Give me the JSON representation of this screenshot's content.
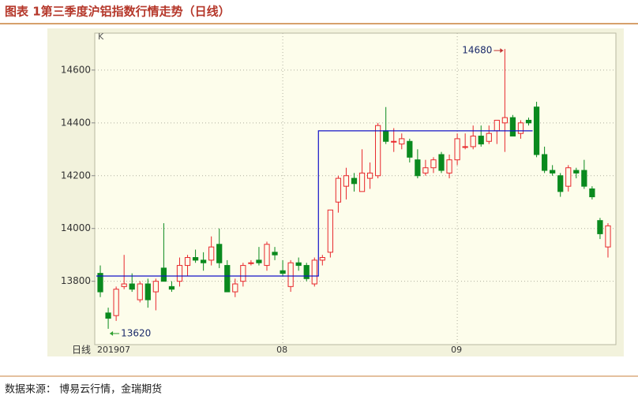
{
  "chart_data": {
    "type": "candlestick",
    "title": "图表 1第三季度沪铝指数行情走势（日线）",
    "y_unit_label": "K",
    "period_label": "日线",
    "source": "数据来源：  博易云行情，金瑞期货",
    "categories": [
      "201907",
      null,
      null,
      null,
      null,
      null,
      null,
      null,
      null,
      null,
      null,
      null,
      null,
      null,
      null,
      null,
      null,
      null,
      null,
      null,
      null,
      null,
      null,
      "08",
      null,
      null,
      null,
      null,
      null,
      null,
      null,
      null,
      null,
      null,
      null,
      null,
      null,
      null,
      null,
      null,
      null,
      null,
      null,
      null,
      null,
      "09",
      null,
      null,
      null,
      null,
      null,
      null,
      null,
      null,
      null,
      null,
      null,
      null,
      null,
      null,
      null,
      null,
      null,
      null,
      null
    ],
    "open": [
      13830,
      13680,
      13670,
      13780,
      13790,
      13730,
      13790,
      13760,
      13850,
      13780,
      13800,
      13860,
      13890,
      13880,
      13880,
      13940,
      13860,
      13760,
      13800,
      13870,
      13880,
      13860,
      13910,
      13840,
      13780,
      13870,
      13860,
      13790,
      13880,
      13910,
      14100,
      14160,
      14190,
      14140,
      14190,
      14200,
      14370,
      14330,
      14320,
      14330,
      14260,
      14210,
      14230,
      14280,
      14210,
      14260,
      14310,
      14310,
      14350,
      14330,
      14370,
      14400,
      14420,
      14360,
      14410,
      14460,
      14280,
      14220,
      14200,
      14160,
      14220,
      14220,
      14150,
      14030,
      13930
    ],
    "high": [
      13860,
      13700,
      13780,
      13900,
      13830,
      13800,
      13810,
      13810,
      14020,
      13800,
      13890,
      13900,
      13920,
      13910,
      13970,
      14000,
      13880,
      13810,
      13870,
      13880,
      13930,
      13950,
      13930,
      13880,
      13880,
      13890,
      13870,
      13890,
      13900,
      14070,
      14200,
      14230,
      14210,
      14300,
      14250,
      14400,
      14460,
      14380,
      14360,
      14340,
      14300,
      14260,
      14270,
      14290,
      14280,
      14360,
      14360,
      14390,
      14390,
      14390,
      14410,
      14680,
      14430,
      14410,
      14420,
      14480,
      14310,
      14240,
      14210,
      14240,
      14230,
      14260,
      14160,
      14040,
      14020
    ],
    "low": [
      13740,
      13620,
      13650,
      13770,
      13760,
      13720,
      13700,
      13690,
      13800,
      13760,
      13780,
      13820,
      13870,
      13840,
      13860,
      13850,
      13760,
      13740,
      13780,
      13860,
      13860,
      13840,
      13880,
      13820,
      13760,
      13840,
      13800,
      13780,
      13860,
      13890,
      14060,
      14110,
      14140,
      14140,
      14150,
      14190,
      14320,
      14290,
      14300,
      14250,
      14190,
      14200,
      14210,
      14210,
      14190,
      14240,
      14300,
      14300,
      14310,
      14320,
      14320,
      14290,
      14350,
      14340,
      14390,
      14270,
      14210,
      14200,
      14120,
      14140,
      14190,
      14150,
      14110,
      13960,
      13890
    ],
    "close": [
      13760,
      13660,
      13770,
      13790,
      13770,
      13790,
      13730,
      13800,
      13800,
      13770,
      13860,
      13890,
      13880,
      13870,
      13930,
      13870,
      13760,
      13790,
      13860,
      13870,
      13870,
      13940,
      13900,
      13830,
      13870,
      13860,
      13810,
      13880,
      13890,
      14070,
      14190,
      14200,
      14170,
      14210,
      14210,
      14390,
      14330,
      14330,
      14340,
      14270,
      14200,
      14230,
      14260,
      14220,
      14260,
      14340,
      14310,
      14350,
      14320,
      14360,
      14410,
      14420,
      14350,
      14400,
      14400,
      14280,
      14220,
      14210,
      14140,
      14230,
      14210,
      14160,
      14120,
      13980,
      14010
    ],
    "up_color": "#e8272c",
    "down_color": "#0a8a1e",
    "level_line": {
      "color": "#1414c8",
      "values": [
        13820,
        13820,
        13820,
        13820,
        13820,
        13820,
        13820,
        13820,
        13820,
        13820,
        13820,
        13820,
        13820,
        13820,
        13820,
        13820,
        13820,
        13820,
        13820,
        13820,
        13820,
        13820,
        13820,
        13820,
        13820,
        13820,
        13820,
        13820,
        14370,
        14370,
        14370,
        14370,
        14370,
        14370,
        14370,
        14370,
        14370,
        14370,
        14370,
        14370,
        14370,
        14370,
        14370,
        14370,
        14370,
        14370,
        14370,
        14370,
        14370,
        14370,
        14370,
        14370,
        14370,
        14370,
        14370,
        null,
        null,
        null,
        null,
        null,
        null,
        null,
        null,
        null,
        null
      ]
    },
    "high_label": "14680",
    "low_label": "13620",
    "ylim": [
      13560,
      14740
    ],
    "yticks": [
      13800,
      14000,
      14200,
      14400,
      14600
    ],
    "grid": true
  }
}
